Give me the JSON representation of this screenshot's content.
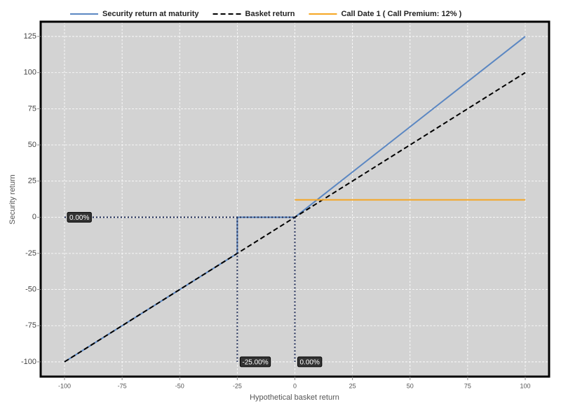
{
  "chart_data": {
    "type": "line",
    "x_label": "Hypothetical basket return",
    "y_label": "Security return",
    "xlim": [
      -110.35,
      110.35
    ],
    "ylim": [
      -110.2,
      135.2
    ],
    "xticks": [
      -100,
      -75,
      -50,
      -25,
      0,
      25,
      50,
      75,
      100
    ],
    "yticks": [
      -100,
      -75,
      -50,
      -25,
      0,
      25,
      50,
      75,
      100,
      125
    ],
    "grid": true,
    "legend": "top",
    "series": [
      {
        "name": "Security return at maturity",
        "color": "#5b87c2",
        "dash": "solid",
        "x": [
          -100,
          -25,
          -25,
          0,
          100
        ],
        "values": [
          -100,
          -25,
          0,
          0,
          125
        ]
      },
      {
        "name": "Basket return",
        "color": "#000000",
        "dash": "dashed",
        "x": [
          -100,
          100
        ],
        "values": [
          -100,
          100
        ]
      },
      {
        "name": "Call Date 1 ( Call Premium: 12% )",
        "color": "#f5a623",
        "dash": "solid",
        "x": [
          0,
          100
        ],
        "values": [
          12,
          12
        ]
      }
    ],
    "reference_lines": [
      {
        "orientation": "horizontal",
        "value": 0,
        "from": -100,
        "to": 0,
        "label": "0.00%"
      },
      {
        "orientation": "vertical",
        "value": -25,
        "from": 0,
        "to": -100,
        "label": "-25.00%"
      },
      {
        "orientation": "vertical",
        "value": 0,
        "from": 0,
        "to": -100,
        "label": "0.00%"
      }
    ]
  }
}
